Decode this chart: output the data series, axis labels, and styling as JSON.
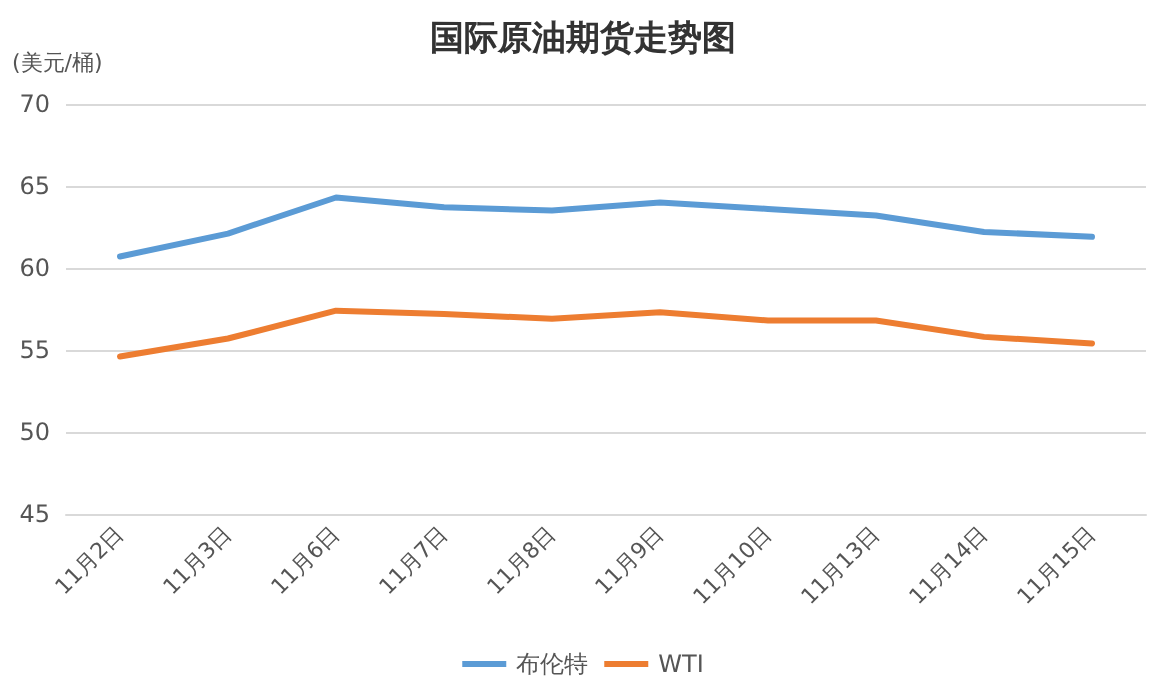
{
  "chart_data": {
    "type": "line",
    "title": "国际原油期货走势图",
    "ylabel": "(美元/桶)",
    "categories": [
      "11月2日",
      "11月3日",
      "11月6日",
      "11月7日",
      "11月8日",
      "11月9日",
      "11月10日",
      "11月13日",
      "11月14日",
      "11月15日"
    ],
    "series": [
      {
        "name": "布伦特",
        "color": "#5b9bd5",
        "values": [
          60.7,
          62.1,
          64.3,
          63.7,
          63.5,
          64.0,
          63.6,
          63.2,
          62.2,
          61.9
        ]
      },
      {
        "name": "WTI",
        "color": "#ed7d31",
        "values": [
          54.6,
          55.7,
          57.4,
          57.2,
          56.9,
          57.3,
          56.8,
          56.8,
          55.8,
          55.4
        ]
      }
    ],
    "ylim": [
      45,
      70
    ],
    "yticks": [
      45,
      50,
      55,
      60,
      65,
      70
    ],
    "grid": "y",
    "legend": "bottom",
    "marker": "none",
    "line_style": "solid"
  }
}
